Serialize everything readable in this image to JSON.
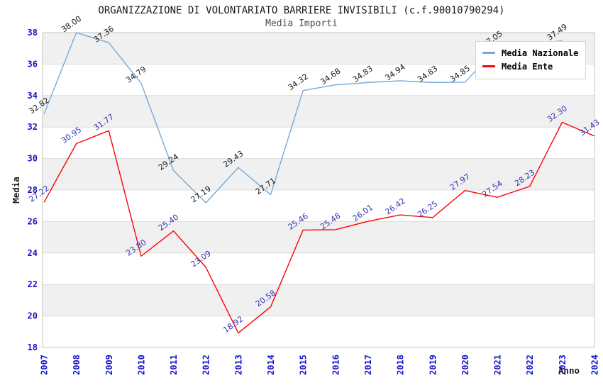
{
  "header": {
    "title": "ORGANIZZAZIONE DI VOLONTARIATO BARRIERE INVISIBILI (c.f.90010790294)",
    "subtitle": "Media Importi"
  },
  "colors": {
    "tick_label": "#1414cd",
    "band": "#f0f0f0",
    "grid": "#dcdcdc",
    "border": "#c4c4c4",
    "national_line": "#74a9dc",
    "ente_line": "#ff0000",
    "national_label": "#1a1a1a",
    "ente_label": "#3434b2"
  },
  "chart_data": {
    "type": "line",
    "title": "ORGANIZZAZIONE DI VOLONTARIATO BARRIERE INVISIBILI (c.f.90010790294)",
    "subtitle": "Media Importi",
    "xlabel": "Anno",
    "ylabel": "Media",
    "x": [
      "2007",
      "2008",
      "2009",
      "2010",
      "2011",
      "2012",
      "2013",
      "2014",
      "2015",
      "2016",
      "2017",
      "2018",
      "2019",
      "2020",
      "2021",
      "2022",
      "2023",
      "2024"
    ],
    "ylim": [
      18,
      38
    ],
    "ytick_step": 2,
    "yticks": [
      18,
      20,
      22,
      24,
      26,
      28,
      30,
      32,
      34,
      36,
      38
    ],
    "grid": true,
    "alternating_bands": true,
    "legend_position": "top-right",
    "series": [
      {
        "name": "Media Nazionale",
        "color": "#74a9dc",
        "label_color": "#1a1a1a",
        "values": [
          32.82,
          38.0,
          37.36,
          34.79,
          29.24,
          27.19,
          29.43,
          27.71,
          34.32,
          34.68,
          34.83,
          34.94,
          34.83,
          34.85,
          37.05,
          37.2,
          37.49,
          null
        ],
        "labels": [
          "32.82",
          "38.00",
          "37.36",
          "34.79",
          "29.24",
          "27.19",
          "29.43",
          "27.71",
          "34.32",
          "34.68",
          "34.83",
          "34.94",
          "34.83",
          "34.85",
          "37.05",
          "",
          "37.49",
          ""
        ]
      },
      {
        "name": "Media Ente",
        "color": "#ff0000",
        "label_color": "#3434b2",
        "values": [
          27.22,
          30.95,
          31.77,
          23.8,
          25.4,
          23.09,
          18.92,
          20.58,
          25.46,
          25.48,
          26.01,
          26.42,
          26.25,
          27.97,
          27.54,
          28.23,
          32.3,
          31.43
        ],
        "labels": [
          "27.22",
          "30.95",
          "31.77",
          "23.80",
          "25.40",
          "23.09",
          "18.92",
          "20.58",
          "25.46",
          "25.48",
          "26.01",
          "26.42",
          "26.25",
          "27.97",
          "27.54",
          "28.23",
          "32.30",
          "31.43"
        ]
      }
    ]
  }
}
